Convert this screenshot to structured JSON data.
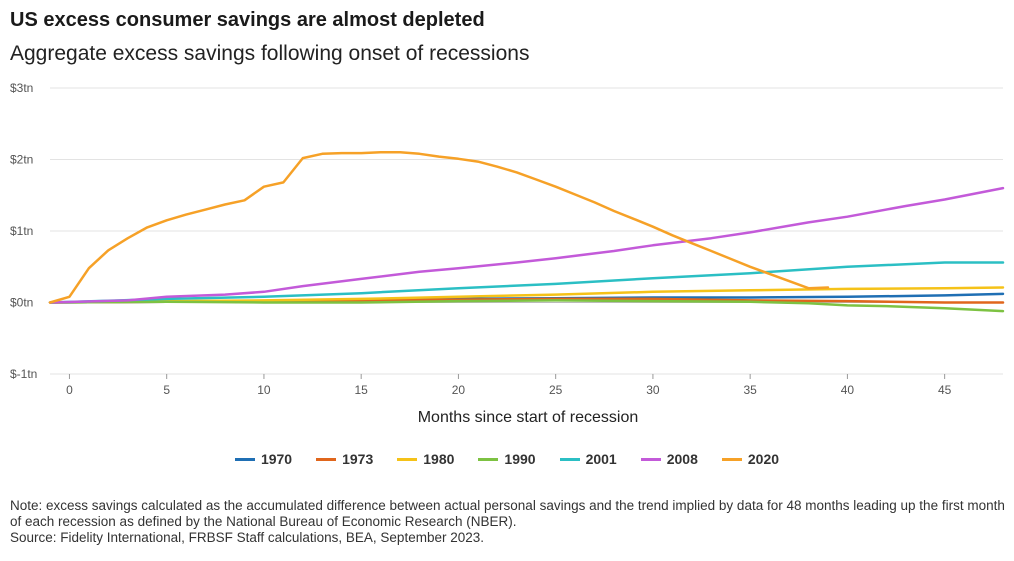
{
  "header": {
    "title": "US excess consumer savings are almost depleted",
    "subtitle": "Aggregate excess savings following onset of recessions"
  },
  "footer": {
    "note": "Note: excess savings calculated as the accumulated difference between actual personal savings and the trend implied by data for 48 months leading up the first month of each recession as defined by the National Bureau of Economic Research (NBER).",
    "source": "Source: Fidelity International, FRBSF Staff calculations, BEA, September 2023."
  },
  "colors": {
    "1970": "#1f6fb4",
    "1973": "#e0661c",
    "1980": "#f5c218",
    "1990": "#7dc242",
    "2001": "#2bbfc4",
    "2008": "#c35ad9",
    "2020": "#f6a127"
  },
  "chart_data": {
    "type": "line",
    "title": "Aggregate excess savings following onset of recessions",
    "xlabel": "Months since start of recession",
    "ylabel": "",
    "xlim": [
      -1,
      48
    ],
    "ylim": [
      -1,
      3
    ],
    "x_ticks": [
      0,
      5,
      10,
      15,
      20,
      25,
      30,
      35,
      40,
      45
    ],
    "y_ticks": [
      -1,
      0,
      1,
      2,
      3
    ],
    "y_tick_labels": [
      "$-1tn",
      "$0tn",
      "$1tn",
      "$2tn",
      "$3tn"
    ],
    "grid": "horizontal",
    "legend": "bottom",
    "series": [
      {
        "name": "1970",
        "points": [
          [
            -1,
            0
          ],
          [
            5,
            0.01
          ],
          [
            10,
            0.02
          ],
          [
            15,
            0.03
          ],
          [
            20,
            0.05
          ],
          [
            25,
            0.06
          ],
          [
            30,
            0.07
          ],
          [
            35,
            0.07
          ],
          [
            40,
            0.08
          ],
          [
            45,
            0.1
          ],
          [
            48,
            0.12
          ]
        ]
      },
      {
        "name": "1973",
        "points": [
          [
            -1,
            0
          ],
          [
            5,
            0.01
          ],
          [
            10,
            0.02
          ],
          [
            15,
            0.03
          ],
          [
            20,
            0.04
          ],
          [
            25,
            0.05
          ],
          [
            30,
            0.05
          ],
          [
            35,
            0.03
          ],
          [
            40,
            0.02
          ],
          [
            45,
            0
          ],
          [
            48,
            0
          ]
        ]
      },
      {
        "name": "1980",
        "points": [
          [
            -1,
            0
          ],
          [
            5,
            0.02
          ],
          [
            10,
            0.03
          ],
          [
            15,
            0.05
          ],
          [
            20,
            0.08
          ],
          [
            25,
            0.11
          ],
          [
            30,
            0.15
          ],
          [
            35,
            0.17
          ],
          [
            40,
            0.19
          ],
          [
            45,
            0.2
          ],
          [
            48,
            0.21
          ]
        ]
      },
      {
        "name": "1990",
        "points": [
          [
            -1,
            0
          ],
          [
            5,
            0.01
          ],
          [
            10,
            0
          ],
          [
            15,
            0
          ],
          [
            20,
            0.02
          ],
          [
            25,
            0.03
          ],
          [
            30,
            0.02
          ],
          [
            35,
            0.01
          ],
          [
            38,
            -0.01
          ],
          [
            40,
            -0.04
          ],
          [
            42,
            -0.05
          ],
          [
            45,
            -0.08
          ],
          [
            48,
            -0.12
          ]
        ]
      },
      {
        "name": "2001",
        "points": [
          [
            -1,
            0
          ],
          [
            5,
            0.05
          ],
          [
            10,
            0.08
          ],
          [
            15,
            0.13
          ],
          [
            20,
            0.2
          ],
          [
            25,
            0.26
          ],
          [
            30,
            0.34
          ],
          [
            35,
            0.41
          ],
          [
            40,
            0.5
          ],
          [
            45,
            0.56
          ],
          [
            48,
            0.56
          ]
        ]
      },
      {
        "name": "2008",
        "points": [
          [
            -1,
            0
          ],
          [
            3,
            0.03
          ],
          [
            5,
            0.08
          ],
          [
            8,
            0.11
          ],
          [
            10,
            0.15
          ],
          [
            12,
            0.23
          ],
          [
            15,
            0.33
          ],
          [
            18,
            0.43
          ],
          [
            20,
            0.48
          ],
          [
            23,
            0.56
          ],
          [
            25,
            0.62
          ],
          [
            28,
            0.72
          ],
          [
            30,
            0.8
          ],
          [
            33,
            0.9
          ],
          [
            35,
            0.98
          ],
          [
            38,
            1.12
          ],
          [
            40,
            1.2
          ],
          [
            43,
            1.35
          ],
          [
            45,
            1.44
          ],
          [
            48,
            1.6
          ]
        ]
      },
      {
        "name": "2020",
        "points": [
          [
            -1,
            0
          ],
          [
            0,
            0.08
          ],
          [
            1,
            0.48
          ],
          [
            2,
            0.73
          ],
          [
            3,
            0.9
          ],
          [
            4,
            1.05
          ],
          [
            5,
            1.15
          ],
          [
            6,
            1.23
          ],
          [
            7,
            1.3
          ],
          [
            8,
            1.37
          ],
          [
            9,
            1.43
          ],
          [
            10,
            1.62
          ],
          [
            11,
            1.68
          ],
          [
            12,
            2.02
          ],
          [
            13,
            2.08
          ],
          [
            14,
            2.09
          ],
          [
            15,
            2.09
          ],
          [
            16,
            2.1
          ],
          [
            17,
            2.1
          ],
          [
            18,
            2.08
          ],
          [
            19,
            2.04
          ],
          [
            20,
            2.01
          ],
          [
            21,
            1.97
          ],
          [
            22,
            1.9
          ],
          [
            23,
            1.82
          ],
          [
            24,
            1.72
          ],
          [
            25,
            1.62
          ],
          [
            26,
            1.51
          ],
          [
            27,
            1.4
          ],
          [
            28,
            1.28
          ],
          [
            29,
            1.17
          ],
          [
            30,
            1.06
          ],
          [
            31,
            0.94
          ],
          [
            32,
            0.83
          ],
          [
            33,
            0.72
          ],
          [
            34,
            0.61
          ],
          [
            35,
            0.5
          ],
          [
            36,
            0.4
          ],
          [
            37,
            0.3
          ],
          [
            38,
            0.2
          ],
          [
            39,
            0.21
          ]
        ]
      }
    ]
  }
}
